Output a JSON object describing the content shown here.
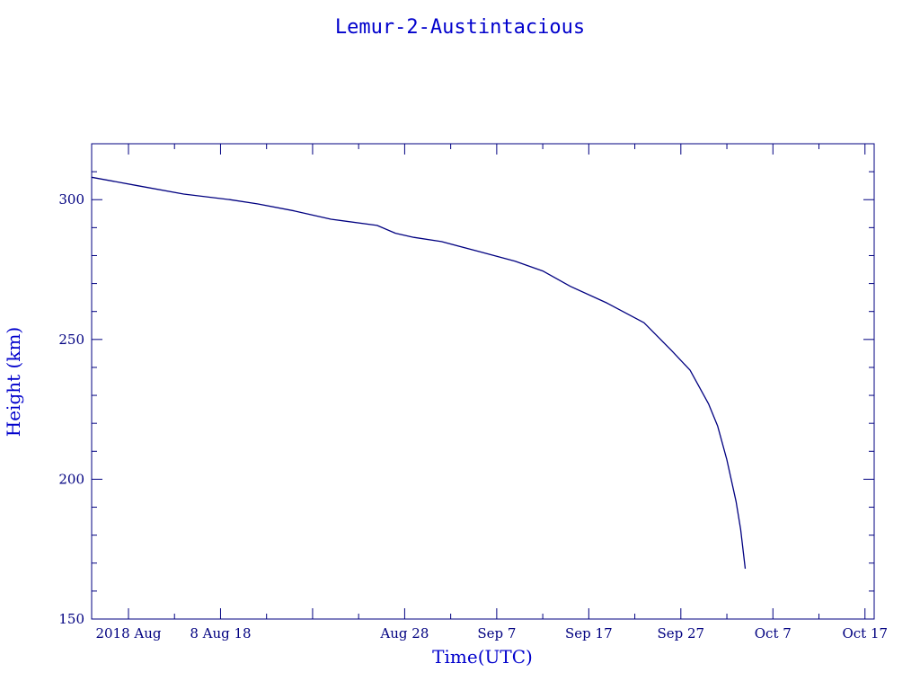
{
  "chart_data": {
    "type": "line",
    "title": "Lemur-2-Austintacious",
    "xlabel": "Time(UTC)",
    "ylabel": "Height (km)",
    "x_unit": "day",
    "xlim": [
      "2018-07-25",
      "2018-10-18"
    ],
    "ylim": [
      150,
      320
    ],
    "y_ticks": [
      150,
      200,
      250,
      300
    ],
    "x_ticks": [
      {
        "date": "2018-07-29",
        "label": "2018 Aug"
      },
      {
        "date": "2018-08-08",
        "label": "8 Aug 18"
      },
      {
        "date": "2018-08-18",
        "label": ""
      },
      {
        "date": "2018-08-28",
        "label": "Aug 28"
      },
      {
        "date": "2018-09-07",
        "label": "Sep  7"
      },
      {
        "date": "2018-09-17",
        "label": "Sep 17"
      },
      {
        "date": "2018-09-27",
        "label": "Sep 27"
      },
      {
        "date": "2018-10-07",
        "label": "Oct  7"
      },
      {
        "date": "2018-10-17",
        "label": "Oct 17"
      }
    ],
    "grid": false,
    "line_color": "#000080",
    "series": [
      {
        "points": [
          [
            "2018-07-25",
            308
          ],
          [
            "2018-07-30",
            305
          ],
          [
            "2018-08-04",
            302
          ],
          [
            "2018-08-09",
            300
          ],
          [
            "2018-08-12",
            298.5
          ],
          [
            "2018-08-16",
            296
          ],
          [
            "2018-08-20",
            293
          ],
          [
            "2018-08-25",
            290.8
          ],
          [
            "2018-08-27",
            288
          ],
          [
            "2018-08-29",
            286.5
          ],
          [
            "2018-09-01",
            285
          ],
          [
            "2018-09-05",
            281.5
          ],
          [
            "2018-09-09",
            278
          ],
          [
            "2018-09-12",
            274.5
          ],
          [
            "2018-09-15",
            269
          ],
          [
            "2018-09-19",
            263
          ],
          [
            "2018-09-23",
            256
          ],
          [
            "2018-09-26",
            246
          ],
          [
            "2018-09-28",
            239
          ],
          [
            "2018-09-30",
            227
          ],
          [
            "2018-10-01",
            219
          ],
          [
            "2018-10-02",
            207
          ],
          [
            "2018-10-03",
            192
          ],
          [
            "2018-10-03T12:00",
            182
          ],
          [
            "2018-10-04",
            168
          ]
        ]
      }
    ]
  }
}
